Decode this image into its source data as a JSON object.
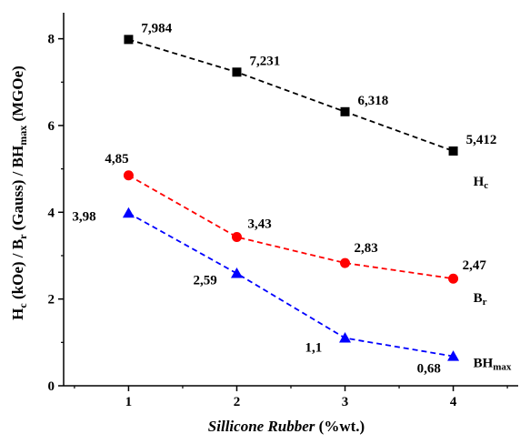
{
  "chart_data": {
    "type": "line",
    "xlabel": "Sillicone Rubber (%wt.)",
    "ylabel": "Hc (kOe) / Br (Gauss) / BHmax (MGOe)",
    "xlim": [
      0.4,
      4.6
    ],
    "ylim": [
      0,
      8.6
    ],
    "x_ticks": [
      "1",
      "2",
      "3",
      "4"
    ],
    "y_ticks": [
      "0",
      "2",
      "4",
      "6",
      "8"
    ],
    "grid": false,
    "x": [
      1,
      2,
      3,
      4
    ],
    "series": [
      {
        "name": "Hc",
        "color": "#000000",
        "marker": "square",
        "values": [
          7.984,
          7.231,
          6.318,
          5.412
        ],
        "labels": [
          "7,984",
          "7,231",
          "6,318",
          "5,412"
        ]
      },
      {
        "name": "Br",
        "color": "#ff0000",
        "marker": "circle",
        "values": [
          4.85,
          3.43,
          2.83,
          2.47
        ],
        "labels": [
          "4,85",
          "3,43",
          "2,83",
          "2,47"
        ]
      },
      {
        "name": "BHmax",
        "color": "#0000ff",
        "marker": "triangle",
        "values": [
          3.98,
          2.59,
          1.1,
          0.68
        ],
        "labels": [
          "3,98",
          "2,59",
          "1,1",
          "0,68"
        ]
      }
    ]
  }
}
